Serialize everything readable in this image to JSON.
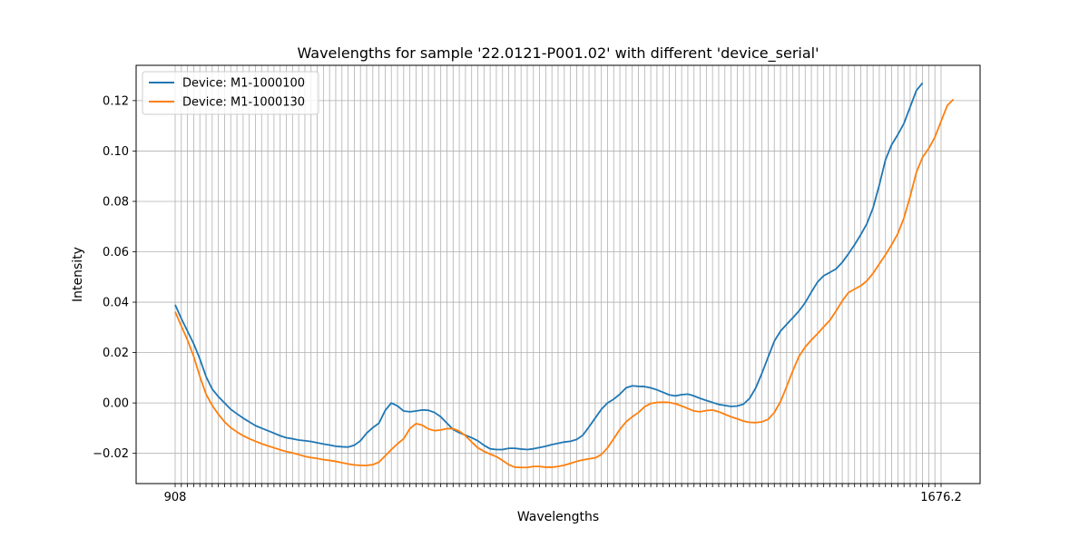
{
  "chart_data": {
    "type": "line",
    "title": "Wavelengths for sample '22.0121-P001.02' with different 'device_serial'",
    "xlabel": "Wavelengths",
    "ylabel": "Intensity",
    "ylim": [
      -0.032,
      0.134
    ],
    "yticks": [
      "−0.02",
      "0.00",
      "0.02",
      "0.04",
      "0.06",
      "0.08",
      "0.10",
      "0.12"
    ],
    "ytick_values": [
      -0.02,
      0.0,
      0.02,
      0.04,
      0.06,
      0.08,
      0.1,
      0.12
    ],
    "x_first_label": "908",
    "x_last_label": "1676.2",
    "grid": true,
    "legend_position": "top-left",
    "x_count": 125,
    "series": [
      {
        "name": "Device: M1-1000100",
        "color": "#1f77b4",
        "values": [
          0.039,
          0.0335,
          0.0285,
          0.0235,
          0.0175,
          0.0105,
          0.0055,
          0.0025,
          0.0,
          -0.0025,
          -0.0043,
          -0.006,
          -0.0075,
          -0.009,
          -0.01,
          -0.011,
          -0.012,
          -0.013,
          -0.0138,
          -0.0142,
          -0.0147,
          -0.015,
          -0.0153,
          -0.0158,
          -0.0163,
          -0.0167,
          -0.0172,
          -0.0174,
          -0.0175,
          -0.0168,
          -0.015,
          -0.012,
          -0.0098,
          -0.008,
          -0.003,
          0.0,
          -0.0012,
          -0.0032,
          -0.0035,
          -0.0032,
          -0.0028,
          -0.0029,
          -0.0038,
          -0.0055,
          -0.008,
          -0.0105,
          -0.0118,
          -0.0128,
          -0.0138,
          -0.015,
          -0.0168,
          -0.0182,
          -0.0185,
          -0.0185,
          -0.018,
          -0.018,
          -0.0183,
          -0.0185,
          -0.0182,
          -0.0177,
          -0.0172,
          -0.0165,
          -0.016,
          -0.0155,
          -0.0152,
          -0.0145,
          -0.0128,
          -0.0095,
          -0.006,
          -0.0025,
          0.0,
          0.0015,
          0.0035,
          0.006,
          0.0068,
          0.0066,
          0.0065,
          0.006,
          0.0052,
          0.0042,
          0.0032,
          0.0028,
          0.0033,
          0.0035,
          0.0028,
          0.0018,
          0.001,
          0.0002,
          -0.0006,
          -0.001,
          -0.0014,
          -0.0012,
          -0.0005,
          0.0018,
          0.006,
          0.0118,
          0.0182,
          0.0245,
          0.0285,
          0.0312,
          0.0338,
          0.0365,
          0.0398,
          0.044,
          0.048,
          0.0505,
          0.0518,
          0.0532,
          0.0558,
          0.0592,
          0.0628,
          0.0668,
          0.0712,
          0.0775,
          0.0865,
          0.0965,
          0.1025,
          0.1065,
          0.111,
          0.1175,
          0.124,
          0.127
        ]
      },
      {
        "name": "Device: M1-1000130",
        "color": "#ff7f0e",
        "values": [
          0.0362,
          0.0305,
          0.025,
          0.0185,
          0.0105,
          0.0035,
          -0.001,
          -0.0045,
          -0.0075,
          -0.0098,
          -0.0115,
          -0.013,
          -0.0142,
          -0.0152,
          -0.0162,
          -0.017,
          -0.0178,
          -0.0186,
          -0.0193,
          -0.0198,
          -0.0205,
          -0.0212,
          -0.0217,
          -0.022,
          -0.0225,
          -0.0228,
          -0.0232,
          -0.0237,
          -0.0242,
          -0.0246,
          -0.0248,
          -0.0248,
          -0.0245,
          -0.0235,
          -0.021,
          -0.0185,
          -0.0162,
          -0.0142,
          -0.0102,
          -0.0082,
          -0.0088,
          -0.0103,
          -0.011,
          -0.0107,
          -0.0102,
          -0.0102,
          -0.0112,
          -0.013,
          -0.0155,
          -0.0178,
          -0.0192,
          -0.0203,
          -0.0213,
          -0.0228,
          -0.0245,
          -0.0255,
          -0.0256,
          -0.0256,
          -0.0252,
          -0.0252,
          -0.0255,
          -0.0255,
          -0.0252,
          -0.0247,
          -0.024,
          -0.0232,
          -0.0226,
          -0.0222,
          -0.0218,
          -0.0205,
          -0.0178,
          -0.0142,
          -0.0105,
          -0.0075,
          -0.0055,
          -0.0038,
          -0.0015,
          -0.0002,
          0.0002,
          0.0003,
          0.0002,
          -0.0003,
          -0.0012,
          -0.0022,
          -0.0032,
          -0.0035,
          -0.003,
          -0.0028,
          -0.0035,
          -0.0045,
          -0.0055,
          -0.0063,
          -0.0072,
          -0.0077,
          -0.0078,
          -0.0075,
          -0.0065,
          -0.0038,
          0.0005,
          0.0065,
          0.0128,
          0.0185,
          0.0222,
          0.025,
          0.0275,
          0.0302,
          0.0328,
          0.0365,
          0.0405,
          0.0438,
          0.0452,
          0.0465,
          0.0485,
          0.0515,
          0.0552,
          0.0588,
          0.0628,
          0.0672,
          0.0735,
          0.082,
          0.0915,
          0.0975,
          0.101,
          0.1055,
          0.1118,
          0.118,
          0.1205
        ]
      }
    ]
  }
}
